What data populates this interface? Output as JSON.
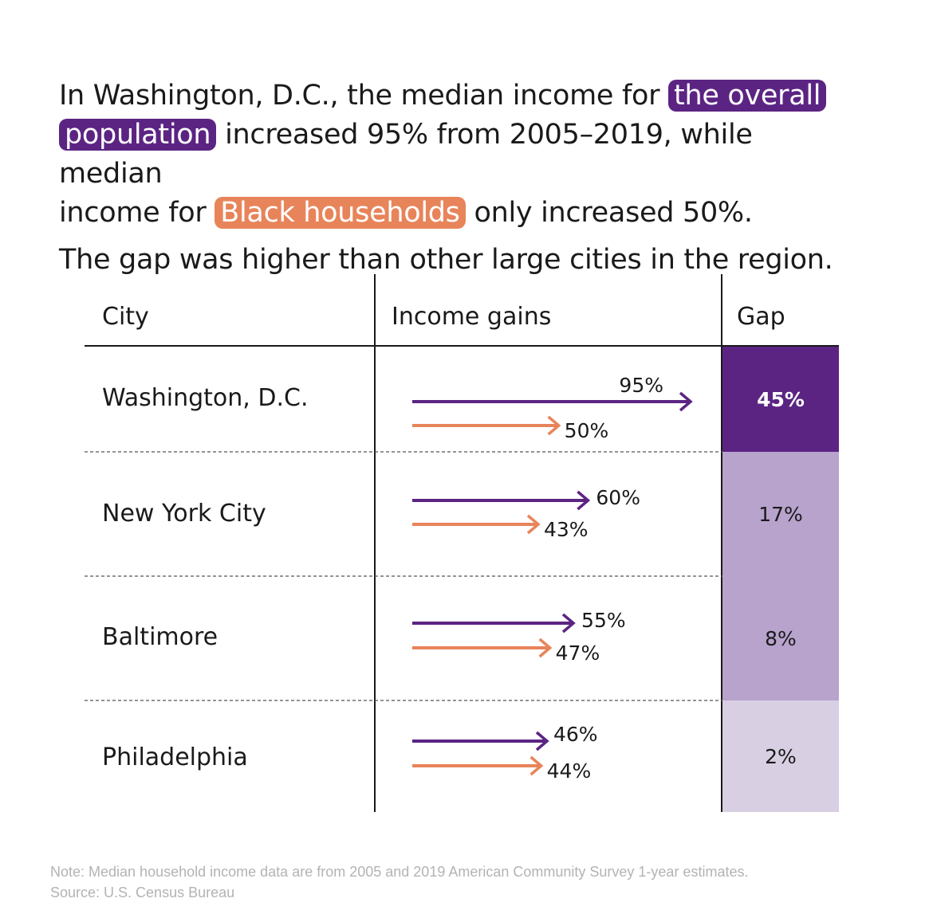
{
  "headline": {
    "line1_pre": "In Washington, D.C., the median income for",
    "highlight_overall": "the overall",
    "highlight_population": "population",
    "line2_rest": "increased 95% from 2005–2019, while median",
    "line3_pre": "income for",
    "highlight_black": "Black households",
    "line3_post": "only increased 50%.",
    "line4": "The gap was higher than other large cities in the region."
  },
  "table": {
    "headers": {
      "city": "City",
      "income": "Income gains",
      "gap": "Gap"
    }
  },
  "colors": {
    "overall": "#5b2483",
    "black": "#e8845a",
    "gap_scale": [
      "#5b2483",
      "#b7a3cc",
      "#b7a3cc",
      "#d8cfe2"
    ]
  },
  "chart_data": {
    "type": "table",
    "series": [
      {
        "name": "the overall population",
        "values": [
          95,
          60,
          55,
          46
        ]
      },
      {
        "name": "Black households",
        "values": [
          50,
          43,
          47,
          44
        ]
      }
    ],
    "rows": [
      {
        "city": "Washington, D.C.",
        "overall": 95,
        "overall_label": "95%",
        "black": 50,
        "black_label": "50%",
        "gap": 45,
        "gap_label": "45%"
      },
      {
        "city": "New York City",
        "overall": 60,
        "overall_label": "60%",
        "black": 43,
        "black_label": "43%",
        "gap": 17,
        "gap_label": "17%"
      },
      {
        "city": "Baltimore",
        "overall": 55,
        "overall_label": "55%",
        "black": 47,
        "black_label": "47%",
        "gap": 8,
        "gap_label": "8%"
      },
      {
        "city": "Philadelphia",
        "overall": 46,
        "overall_label": "46%",
        "black": 44,
        "black_label": "44%",
        "gap": 2,
        "gap_label": "2%"
      }
    ]
  },
  "note": {
    "line1": "Note: Median household income data are from 2005 and 2019 American Community Survey 1-year estimates.",
    "line2": "Source: U.S. Census Bureau"
  }
}
